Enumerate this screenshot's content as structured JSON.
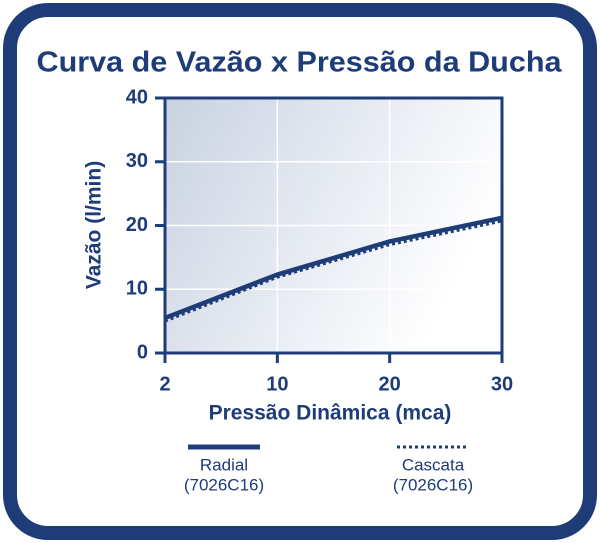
{
  "chart_data": {
    "type": "line",
    "title": "Curva de Vazão x Pressão da Ducha",
    "x_label": "Pressão Dinâmica (mca)",
    "y_label": "Vazão (l/min)",
    "categories": [
      "2",
      "10",
      "20",
      "30"
    ],
    "series": [
      {
        "name": "Radial",
        "model": "(7026C16)",
        "color": "#1d3c78",
        "style": "solid",
        "values": [
          5.5,
          12.3,
          17.5,
          21.2
        ]
      },
      {
        "name": "Cascata",
        "model": "(7026C16)",
        "color": "#1d3c78",
        "style": "dotted",
        "values": [
          5.0,
          11.9,
          17.0,
          20.7
        ]
      }
    ],
    "ylim": [
      0,
      40
    ],
    "yticks": [
      0,
      10,
      20,
      30,
      40
    ],
    "grid": true
  }
}
